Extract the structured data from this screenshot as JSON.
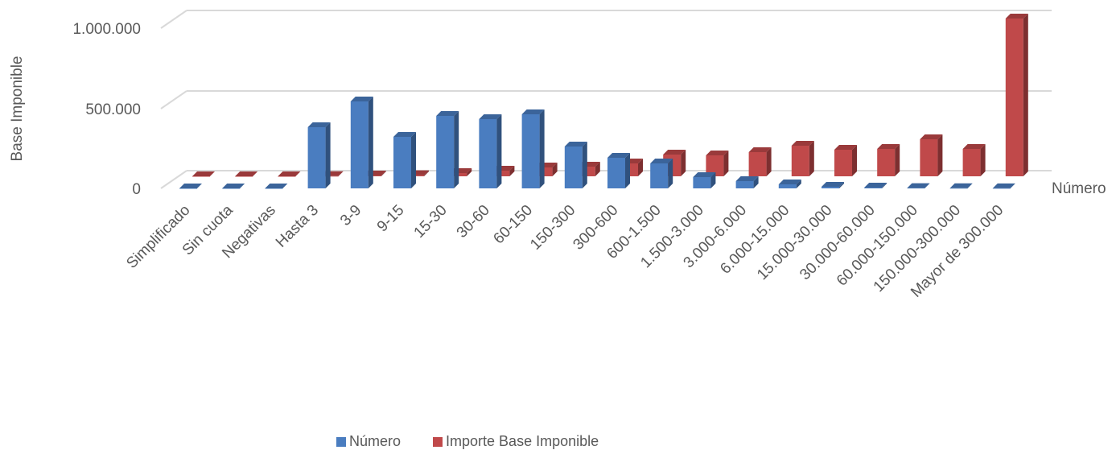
{
  "chart_data": {
    "type": "bar",
    "title": "",
    "ylabel": "Base Imponible",
    "zlabel": "Número",
    "ylim": [
      0,
      1000000
    ],
    "yticks": [
      "0",
      "500.000",
      "1.000.000"
    ],
    "grid": true,
    "legend_position": "bottom",
    "categories": [
      "Simplificado",
      "Sin cuota",
      "Negativas",
      "Hasta 3",
      "3-9",
      "9-15",
      "15-30",
      "30-60",
      "60-150",
      "150-300",
      "300-600",
      "600-1.500",
      "1.500-3.000",
      "3.000-6.000",
      "6.000-15.000",
      "15.000-30.000",
      "30.000-60.000",
      "60.000-150.000",
      "150.000-300.000",
      "Mayor de 300.000"
    ],
    "series": [
      {
        "name": "Número",
        "color": "#4a7dc0",
        "values": [
          0,
          0,
          0,
          380000,
          540000,
          320000,
          450000,
          430000,
          460000,
          260000,
          190000,
          155000,
          70000,
          45000,
          25000,
          10000,
          5000,
          2000,
          1000,
          500
        ]
      },
      {
        "name": "Importe Base Imponible",
        "color": "#c0494a",
        "values": [
          0,
          0,
          0,
          1000,
          5000,
          7000,
          20000,
          35000,
          55000,
          60000,
          80000,
          135000,
          130000,
          150000,
          190000,
          165000,
          170000,
          230000,
          170000,
          980000
        ]
      }
    ]
  }
}
